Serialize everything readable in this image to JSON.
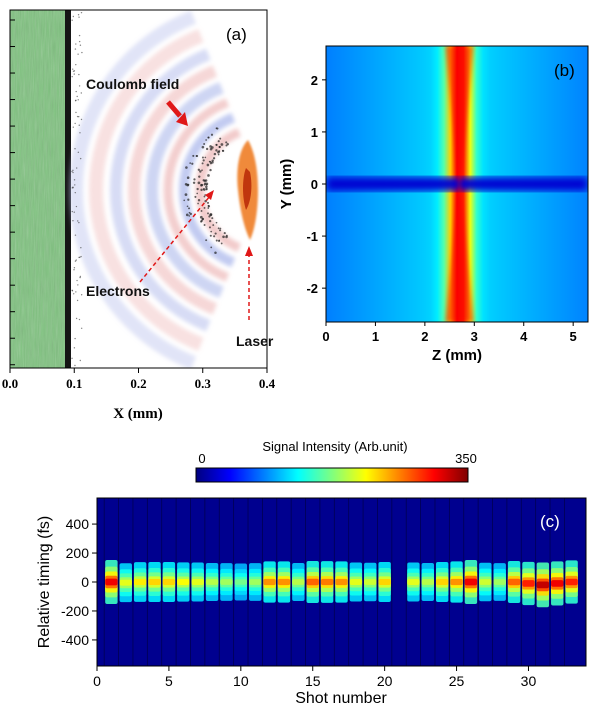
{
  "colors": {
    "jet": [
      "#00007f",
      "#0000ff",
      "#007fff",
      "#00ffff",
      "#7fff7f",
      "#ffff00",
      "#ff7f00",
      "#ff0000",
      "#7f0000"
    ],
    "background_c": "#00008f",
    "red_annotation": "#e01818",
    "green_plasma": "#7fc37f"
  },
  "chart_data": [
    {
      "id": "a",
      "type": "heatmap",
      "panel_label": "(a)",
      "xlabel": "X (mm)",
      "x_ticks": [
        "0.0",
        "0.1",
        "0.2",
        "0.3",
        "0.4"
      ],
      "xlim": [
        0.0,
        0.4
      ],
      "target_edge_x": 0.068,
      "annotations": [
        {
          "text": "Coulomb field"
        },
        {
          "text": "Electrons"
        },
        {
          "text": "Laser"
        }
      ]
    },
    {
      "id": "b",
      "type": "heatmap",
      "panel_label": "(b)",
      "xlabel": "Z (mm)",
      "ylabel": "Y (mm)",
      "x_ticks": [
        "0",
        "1",
        "2",
        "3",
        "4",
        "5"
      ],
      "y_ticks": [
        "2",
        "1",
        "0",
        "-1",
        "-2"
      ],
      "xlim": [
        0,
        5.3
      ],
      "ylim": [
        -2.65,
        2.65
      ],
      "center_z": 2.7
    },
    {
      "id": "c",
      "type": "heatmap",
      "panel_label": "(c)",
      "xlabel": "Shot number",
      "ylabel": "Relative timing (fs)",
      "x_ticks": [
        "0",
        "5",
        "10",
        "15",
        "20",
        "25",
        "30"
      ],
      "y_ticks": [
        "400",
        "200",
        "0",
        "-200",
        "-400"
      ],
      "xlim": [
        0,
        34
      ],
      "ylim": [
        -580,
        580
      ],
      "colorbar": {
        "title": "Signal Intensity (Arb.unit)",
        "min_label": "0",
        "max_label": "350",
        "range": [
          0,
          350
        ]
      },
      "shots": [
        1,
        2,
        3,
        4,
        5,
        6,
        7,
        8,
        9,
        10,
        11,
        12,
        13,
        14,
        15,
        16,
        17,
        18,
        19,
        20,
        21,
        22,
        23,
        24,
        25,
        26,
        27,
        28,
        29,
        30,
        31,
        32,
        33
      ],
      "peak_timing_fs": [
        0,
        -5,
        0,
        0,
        0,
        0,
        0,
        0,
        0,
        0,
        0,
        0,
        0,
        0,
        0,
        0,
        0,
        0,
        0,
        0,
        0,
        0,
        0,
        0,
        0,
        0,
        0,
        0,
        0,
        -10,
        -20,
        -10,
        0
      ],
      "peak_intensity": [
        300,
        170,
        190,
        200,
        200,
        180,
        170,
        150,
        140,
        120,
        140,
        230,
        230,
        150,
        250,
        240,
        230,
        170,
        160,
        200,
        0,
        170,
        150,
        200,
        230,
        300,
        160,
        140,
        250,
        280,
        320,
        300,
        280
      ]
    }
  ]
}
